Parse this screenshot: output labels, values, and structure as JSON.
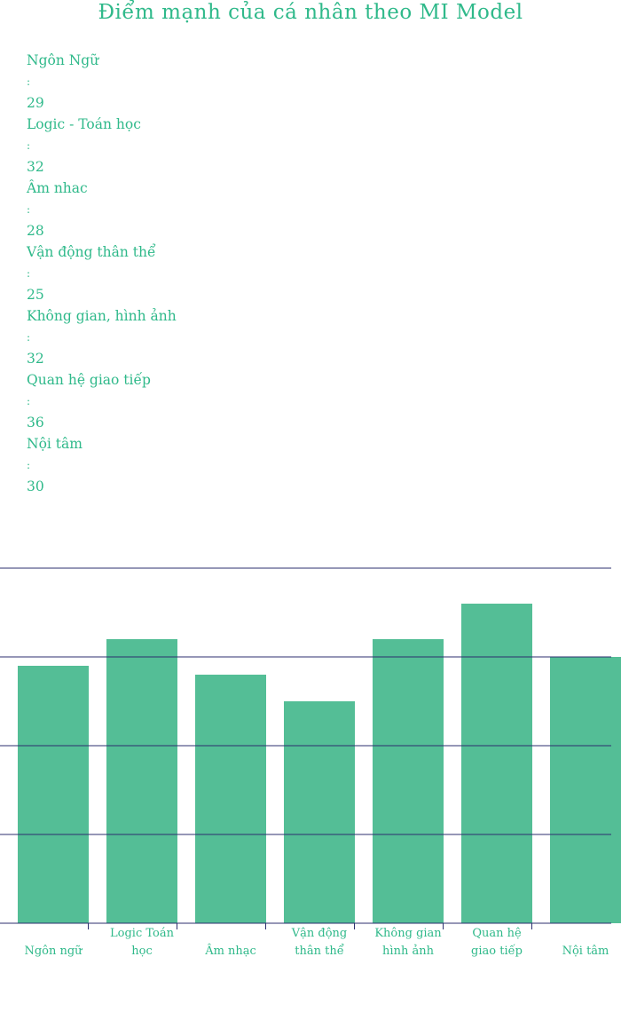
{
  "title": "Điểm mạnh của cá nhân theo MI Model",
  "scores": [
    {
      "label": "Ngôn Ngữ",
      "sep": ":",
      "value": "29"
    },
    {
      "label": "Logic - Toán học",
      "sep": ":",
      "value": "32"
    },
    {
      "label": "Âm nhac",
      "sep": ":",
      "value": "28"
    },
    {
      "label": "Vận động thân thể",
      "sep": ":",
      "value": "25"
    },
    {
      "label": "Không gian, hình ảnh",
      "sep": ":",
      "value": "32"
    },
    {
      "label": "Quan hệ giao tiếp",
      "sep": ":",
      "value": "36"
    },
    {
      "label": "Nội tâm",
      "sep": ":",
      "value": "30"
    }
  ],
  "colors": {
    "bar": "#54be96",
    "text": "#2fb98a",
    "grid": "#2c2f6f"
  },
  "chart_data": {
    "type": "bar",
    "categories": [
      [
        "Ngôn ngữ"
      ],
      [
        "Logic Toán",
        "học"
      ],
      [
        "Âm nhạc"
      ],
      [
        "Vận động",
        "thân thể"
      ],
      [
        "Không gian",
        "hình ảnh"
      ],
      [
        "Quan hệ",
        "giao tiếp"
      ],
      [
        "Nội tâm"
      ]
    ],
    "values": [
      29,
      32,
      28,
      25,
      32,
      36,
      30
    ],
    "ylim": [
      0,
      40
    ],
    "grid": true,
    "legend": "none"
  }
}
